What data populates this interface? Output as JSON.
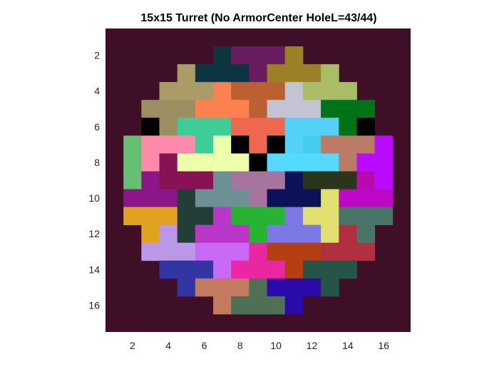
{
  "chart_data": {
    "type": "heatmap",
    "title": "15x15 Turret (No ArmorCenter HoleL=43/44)",
    "xlabel": "",
    "ylabel": "",
    "xlim": [
      0.5,
      17.5
    ],
    "ylim": [
      0.5,
      17.5
    ],
    "y_direction": "reversed",
    "x_ticks": [
      2,
      4,
      6,
      8,
      10,
      12,
      14,
      16
    ],
    "y_ticks": [
      2,
      4,
      6,
      8,
      10,
      12,
      14,
      16
    ],
    "grid": false,
    "background_color": "#3f0f27",
    "cell_rows": [
      {
        "row": 2,
        "cells": [
          [
            "#0c3540",
            7,
            7
          ],
          [
            "#6a1c60",
            8,
            10
          ],
          [
            "#9c8028",
            11,
            11
          ]
        ]
      },
      {
        "row": 3,
        "cells": [
          [
            "#ab9b66",
            5,
            5
          ],
          [
            "#0c3540",
            6,
            8
          ],
          [
            "#6a1c60",
            9,
            9
          ],
          [
            "#9c8028",
            10,
            12
          ],
          [
            "#a9bc66",
            13,
            13
          ]
        ]
      },
      {
        "row": 4,
        "cells": [
          [
            "#ab9b66",
            4,
            6
          ],
          [
            "#fd8050",
            7,
            7
          ],
          [
            "#bb6030",
            8,
            10
          ],
          [
            "#c3c3d4",
            11,
            11
          ],
          [
            "#a9bc66",
            12,
            14
          ]
        ]
      },
      {
        "row": 5,
        "cells": [
          [
            "#9a8e62",
            3,
            5
          ],
          [
            "#fd8050",
            6,
            8
          ],
          [
            "#bb6030",
            9,
            9
          ],
          [
            "#c3c3d4",
            10,
            12
          ],
          [
            "#007319",
            13,
            15
          ]
        ]
      },
      {
        "row": 6,
        "cells": [
          [
            "#000000",
            3,
            3
          ],
          [
            "#9a8e62",
            4,
            4
          ],
          [
            "#40cc99",
            5,
            7
          ],
          [
            "#ee6850",
            8,
            10
          ],
          [
            "#55d0f9",
            11,
            13
          ],
          [
            "#007319",
            14,
            14
          ],
          [
            "#000000",
            15,
            15
          ]
        ]
      },
      {
        "row": 7,
        "cells": [
          [
            "#66c073",
            2,
            2
          ],
          [
            "#ff8aac",
            3,
            5
          ],
          [
            "#40cc99",
            6,
            6
          ],
          [
            "#eeffaa",
            7,
            7
          ],
          [
            "#000000",
            8,
            8
          ],
          [
            "#ee6850",
            9,
            9
          ],
          [
            "#000000",
            10,
            10
          ],
          [
            "#55d0f9",
            11,
            11
          ],
          [
            "#44cdf3",
            12,
            12
          ],
          [
            "#bd7a66",
            13,
            15
          ],
          [
            "#b90bff",
            16,
            16
          ]
        ]
      },
      {
        "row": 8,
        "cells": [
          [
            "#66c073",
            2,
            2
          ],
          [
            "#ff8aac",
            3,
            3
          ],
          [
            "#871355",
            4,
            4
          ],
          [
            "#eeffaa",
            5,
            8
          ],
          [
            "#000000",
            9,
            9
          ],
          [
            "#55d9fc",
            10,
            13
          ],
          [
            "#bd7a66",
            14,
            14
          ],
          [
            "#b90bff",
            15,
            16
          ]
        ]
      },
      {
        "row": 9,
        "cells": [
          [
            "#66c073",
            2,
            2
          ],
          [
            "#8c1587",
            3,
            3
          ],
          [
            "#871355",
            4,
            6
          ],
          [
            "#6d9094",
            7,
            7
          ],
          [
            "#a774a0",
            8,
            10
          ],
          [
            "#0c1258",
            11,
            11
          ],
          [
            "#2b3519",
            12,
            14
          ],
          [
            "#ba0aad",
            15,
            15
          ],
          [
            "#b90bff",
            16,
            16
          ]
        ]
      },
      {
        "row": 10,
        "cells": [
          [
            "#8c1587",
            2,
            4
          ],
          [
            "#233d38",
            5,
            5
          ],
          [
            "#6d9094",
            6,
            8
          ],
          [
            "#a774a0",
            9,
            9
          ],
          [
            "#0c1258",
            10,
            12
          ],
          [
            "#e1e071",
            13,
            13
          ],
          [
            "#bd08c6",
            14,
            16
          ]
        ]
      },
      {
        "row": 11,
        "cells": [
          [
            "#e0a320",
            2,
            4
          ],
          [
            "#233d38",
            5,
            6
          ],
          [
            "#b836c8",
            7,
            7
          ],
          [
            "#28b332",
            8,
            10
          ],
          [
            "#7b79e4",
            11,
            11
          ],
          [
            "#e1e071",
            12,
            13
          ],
          [
            "#4a7468",
            14,
            16
          ]
        ]
      },
      {
        "row": 12,
        "cells": [
          [
            "#e0a320",
            3,
            3
          ],
          [
            "#bb97e8",
            4,
            4
          ],
          [
            "#233d38",
            5,
            5
          ],
          [
            "#b836c8",
            6,
            8
          ],
          [
            "#28b332",
            9,
            9
          ],
          [
            "#7b79e4",
            10,
            12
          ],
          [
            "#e1e071",
            13,
            13
          ],
          [
            "#b03040",
            14,
            14
          ],
          [
            "#4a7468",
            15,
            15
          ]
        ]
      },
      {
        "row": 13,
        "cells": [
          [
            "#bb97e8",
            3,
            5
          ],
          [
            "#c86af5",
            6,
            8
          ],
          [
            "#ea26a2",
            9,
            9
          ],
          [
            "#b53e12",
            10,
            12
          ],
          [
            "#b03040",
            13,
            15
          ]
        ]
      },
      {
        "row": 14,
        "cells": [
          [
            "#3435a5",
            4,
            6
          ],
          [
            "#c86af5",
            7,
            7
          ],
          [
            "#ea26a2",
            8,
            10
          ],
          [
            "#b53e12",
            11,
            11
          ],
          [
            "#245546",
            12,
            14
          ]
        ]
      },
      {
        "row": 15,
        "cells": [
          [
            "#3435a5",
            5,
            5
          ],
          [
            "#c57a60",
            6,
            8
          ],
          [
            "#4f7055",
            9,
            9
          ],
          [
            "#2b0aaa",
            10,
            12
          ],
          [
            "#245546",
            13,
            13
          ]
        ]
      },
      {
        "row": 16,
        "cells": [
          [
            "#c57a60",
            7,
            7
          ],
          [
            "#4f7055",
            8,
            10
          ],
          [
            "#2b0aaa",
            11,
            11
          ]
        ]
      }
    ]
  }
}
